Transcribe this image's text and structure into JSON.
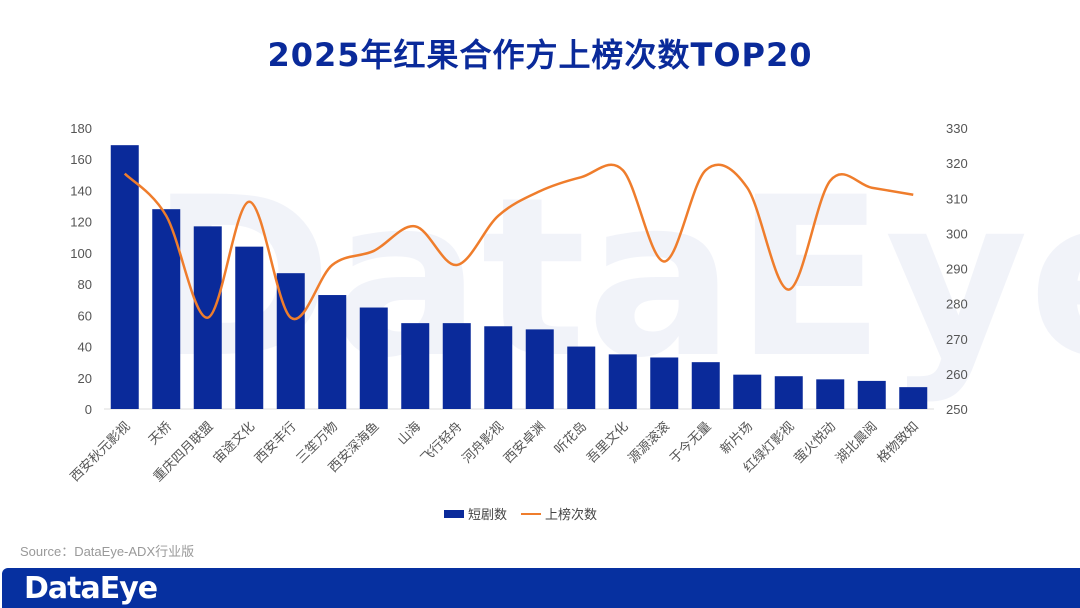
{
  "chart_data": {
    "type": "bar+line",
    "title": "2025年红果合作方上榜次数TOP20",
    "categories": [
      "西安秋元影视",
      "天桥",
      "重庆四月联盟",
      "宙途文化",
      "西安丰行",
      "三笙万物",
      "西安深海鱼",
      "山海",
      "飞行轻舟",
      "河舟影视",
      "西安卓渊",
      "听花岛",
      "吾里文化",
      "源源滚滚",
      "于今无量",
      "新片场",
      "红绿灯影视",
      "萤火悦动",
      "湖北晨阅",
      "格物致知"
    ],
    "series": [
      {
        "name": "短剧数",
        "type": "bar",
        "axis": "left",
        "color": "#0a2a9a",
        "values": [
          169,
          128,
          117,
          104,
          87,
          73,
          65,
          55,
          55,
          53,
          51,
          40,
          35,
          33,
          30,
          22,
          21,
          19,
          18,
          14
        ]
      },
      {
        "name": "上榜次数",
        "type": "line",
        "axis": "right",
        "color": "#ef7d2c",
        "values": [
          317,
          305,
          276,
          309,
          276,
          291,
          295,
          302,
          291,
          305,
          312,
          316,
          318,
          292,
          318,
          313,
          284,
          315,
          313,
          311
        ]
      }
    ],
    "y_left": {
      "range": [
        0,
        180
      ],
      "ticks": [
        0,
        20,
        40,
        60,
        80,
        100,
        120,
        140,
        160,
        180
      ]
    },
    "y_right": {
      "range": [
        250,
        330
      ],
      "ticks": [
        250,
        260,
        270,
        280,
        290,
        300,
        310,
        320,
        330
      ]
    },
    "legend": "bottom"
  },
  "source": "Source：DataEye-ADX行业版",
  "logo": "DataEye",
  "watermark": "DataEye"
}
